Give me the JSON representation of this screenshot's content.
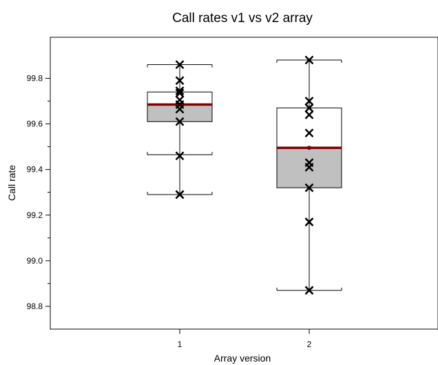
{
  "chart_data": {
    "type": "box",
    "title": "Call rates  v1 vs v2 array",
    "xlabel": "Array version",
    "ylabel": "Call rate",
    "ylim": [
      98.7,
      99.98
    ],
    "yticks": [
      98.8,
      99.0,
      99.2,
      99.4,
      99.6,
      99.8
    ],
    "ytick_labels": [
      "98.8",
      "99.0",
      "99.2",
      "99.4",
      "99.6",
      "99.8"
    ],
    "categories": [
      "1",
      "2"
    ],
    "colors": {
      "box_fill_lower": "#c0c0c0",
      "box_fill_upper": "#ffffff",
      "median": "#7f0000",
      "marker": "#000000"
    },
    "boxes": [
      {
        "category": "1",
        "whisker_low": 99.29,
        "q1": 99.61,
        "median": 99.685,
        "q3": 99.74,
        "whisker_high": 99.86,
        "inner_low": 99.465,
        "points": [
          99.86,
          99.79,
          99.745,
          99.735,
          99.705,
          99.685,
          99.665,
          99.61,
          99.46,
          99.29,
          99.29
        ]
      },
      {
        "category": "2",
        "whisker_low": 98.87,
        "q1": 99.32,
        "median": 99.495,
        "q3": 99.67,
        "whisker_high": 99.88,
        "points": [
          99.88,
          99.7,
          99.67,
          99.64,
          99.56,
          99.43,
          99.41,
          99.32,
          99.17,
          98.87
        ]
      }
    ]
  }
}
